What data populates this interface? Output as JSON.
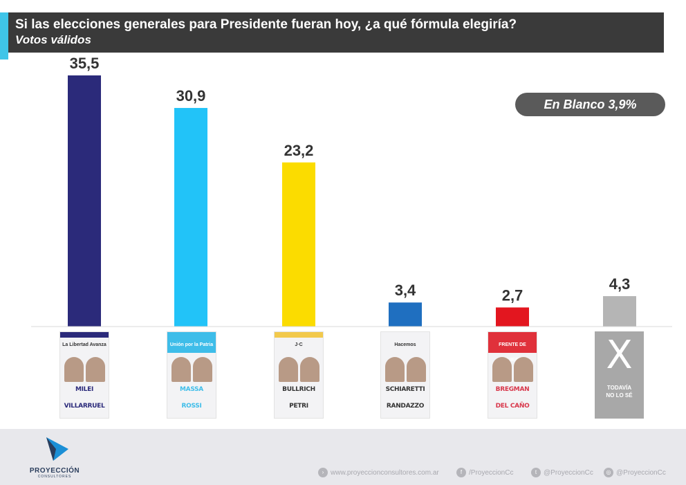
{
  "header": {
    "title": "Si las elecciones generales para Presidente fueran hoy, ¿a qué fórmula elegiría?",
    "subtitle": "Votos válidos"
  },
  "blank_badge": "En Blanco 3,9%",
  "chart_data": {
    "type": "bar",
    "title": "Si las elecciones generales para Presidente fueran hoy, ¿a qué fórmula elegiría?",
    "subtitle": "Votos válidos",
    "categories": [
      "Milei - Villarruel",
      "Massa - Rossi",
      "Bullrich - Petri",
      "Schiaretti - Randazzo",
      "Bregman - Del Caño",
      "Todavía no lo sé"
    ],
    "values": [
      35.5,
      30.9,
      23.2,
      3.4,
      2.7,
      4.3
    ],
    "labels": [
      "35,5",
      "30,9",
      "23,2",
      "3,4",
      "2,7",
      "4,3"
    ],
    "colors": [
      "#2b2a7a",
      "#22c3f8",
      "#fbdc00",
      "#1f6fc0",
      "#e3161f",
      "#b5b5b5"
    ],
    "ylim": [
      0,
      36
    ],
    "grid": false
  },
  "cards": [
    {
      "logo": "La Libertad Avanza",
      "top": "MILEI",
      "bottom": "VILLARRUEL",
      "band": "#2b2a7a",
      "logoBg": "#f3f3f5",
      "color": "#2b2a7a"
    },
    {
      "logo": "Unión por la Patria",
      "top": "MASSA",
      "bottom": "ROSSI",
      "band": "#3ebde9",
      "logoBg": "#3ebde9",
      "color": "#3ebde9"
    },
    {
      "logo": "J·C",
      "top": "BULLRICH",
      "bottom": "PETRI",
      "band": "#f2c94c",
      "logoBg": "#f3f3f5",
      "color": "#333333"
    },
    {
      "logo": "Hacemos",
      "top": "SCHIARETTI",
      "bottom": "RANDAZZO",
      "band": "#f3f3f5",
      "logoBg": "#f3f3f5",
      "color": "#333333"
    },
    {
      "logo": "FRENTE DE IZQUIERDA",
      "top": "BREGMAN",
      "bottom": "DEL CAÑO",
      "band": "#e0313b",
      "logoBg": "#e0313b",
      "color": "#d8364a"
    }
  ],
  "undecided": {
    "mark": "X",
    "label1": "TODAVÍA",
    "label2": "NO LO SÉ"
  },
  "footer": {
    "brand": "PROYECCIÓN",
    "brand_sub": "CONSULTORES",
    "web": "www.proyeccionconsultores.com.ar",
    "facebook": "/ProyeccionCc",
    "twitter": "@ProyeccionCc",
    "instagram": "@ProyeccionCc"
  }
}
